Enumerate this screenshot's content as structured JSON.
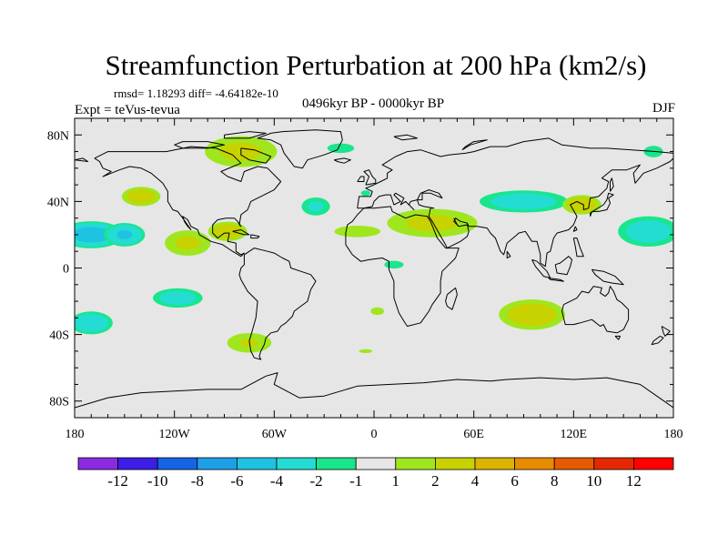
{
  "chart_data": {
    "type": "contour_map",
    "title": "Streamfunction Perturbation at 200 hPa (km2/s)",
    "stats_label": "rmsd= 1.18293 diff= -4.64182e-10",
    "experiment_label": "Expt = teVus-tevua",
    "period_label": "0496kyr BP - 0000kyr BP",
    "season_label": "DJF",
    "x_axis": {
      "range": [
        -180,
        180
      ],
      "ticks": [
        {
          "value": -180,
          "label": "180"
        },
        {
          "value": -120,
          "label": "120W"
        },
        {
          "value": -60,
          "label": "60W"
        },
        {
          "value": 0,
          "label": "0"
        },
        {
          "value": 60,
          "label": "60E"
        },
        {
          "value": 120,
          "label": "120E"
        },
        {
          "value": 180,
          "label": "180"
        }
      ]
    },
    "y_axis": {
      "range": [
        -90,
        90
      ],
      "ticks": [
        {
          "value": 80,
          "label": "80N"
        },
        {
          "value": 40,
          "label": "40N"
        },
        {
          "value": 0,
          "label": "0"
        },
        {
          "value": -40,
          "label": "40S"
        },
        {
          "value": -80,
          "label": "80S"
        }
      ]
    },
    "levels": [
      -12,
      -10,
      -8,
      -6,
      -4,
      -2,
      -1,
      1,
      2,
      4,
      6,
      8,
      10,
      12
    ],
    "level_labels": [
      "-12",
      "-10",
      "-8",
      "-6",
      "-4",
      "-2",
      "-1",
      "1",
      "2",
      "4",
      "6",
      "8",
      "10",
      "12"
    ],
    "colors": [
      "#8a2be2",
      "#3c1ee6",
      "#1464e6",
      "#1ea0e6",
      "#1ec3e1",
      "#23dcd2",
      "#19e68c",
      "#e6e6e6",
      "#a0e61e",
      "#c8d200",
      "#dcb400",
      "#e68c00",
      "#e65a00",
      "#e62800",
      "#ff0000"
    ],
    "anomalies": [
      {
        "lon": -170,
        "lat": 20,
        "rlon": 22,
        "rlat": 9,
        "value": -5.5
      },
      {
        "lon": -150,
        "lat": 20,
        "rlon": 14,
        "rlat": 8,
        "value": -4.5
      },
      {
        "lon": -140,
        "lat": 43,
        "rlon": 14,
        "rlat": 7,
        "value": 3.2
      },
      {
        "lon": -112,
        "lat": 15,
        "rlon": 18,
        "rlat": 10,
        "value": 2.4
      },
      {
        "lon": -88,
        "lat": 22,
        "rlon": 14,
        "rlat": 7,
        "value": 3.3
      },
      {
        "lon": -80,
        "lat": 70,
        "rlon": 28,
        "rlat": 12,
        "value": 2.5
      },
      {
        "lon": -35,
        "lat": 37,
        "rlon": 11,
        "rlat": 7,
        "value": -2.5
      },
      {
        "lon": -20,
        "lat": 72,
        "rlon": 14,
        "rlat": 5,
        "value": -1.5
      },
      {
        "lon": -5,
        "lat": 45,
        "rlon": 5,
        "rlat": 3,
        "value": -1.5
      },
      {
        "lon": -10,
        "lat": 22,
        "rlon": 24,
        "rlat": 6,
        "value": 1.5
      },
      {
        "lon": 35,
        "lat": 27,
        "rlon": 35,
        "rlat": 11,
        "value": 2.5
      },
      {
        "lon": 12,
        "lat": 2,
        "rlon": 10,
        "rlat": 4,
        "value": -1.5
      },
      {
        "lon": 90,
        "lat": 40,
        "rlon": 32,
        "rlat": 8,
        "value": -3.2
      },
      {
        "lon": 125,
        "lat": 38,
        "rlon": 14,
        "rlat": 7,
        "value": 3.3
      },
      {
        "lon": 165,
        "lat": 22,
        "rlon": 22,
        "rlat": 11,
        "value": -3.2
      },
      {
        "lon": 168,
        "lat": 70,
        "rlon": 10,
        "rlat": 6,
        "value": -1.5
      },
      {
        "lon": -118,
        "lat": -18,
        "rlon": 18,
        "rlat": 7,
        "value": -3.2
      },
      {
        "lon": -170,
        "lat": -33,
        "rlon": 15,
        "rlat": 8,
        "value": -3.8
      },
      {
        "lon": -75,
        "lat": -45,
        "rlon": 18,
        "rlat": 8,
        "value": 2.2
      },
      {
        "lon": 2,
        "lat": -26,
        "rlon": 7,
        "rlat": 4,
        "value": 1.5
      },
      {
        "lon": -5,
        "lat": -50,
        "rlon": 7,
        "rlat": 2,
        "value": 1.5
      },
      {
        "lon": 95,
        "lat": -28,
        "rlon": 24,
        "rlat": 11,
        "value": 3.2
      }
    ]
  }
}
